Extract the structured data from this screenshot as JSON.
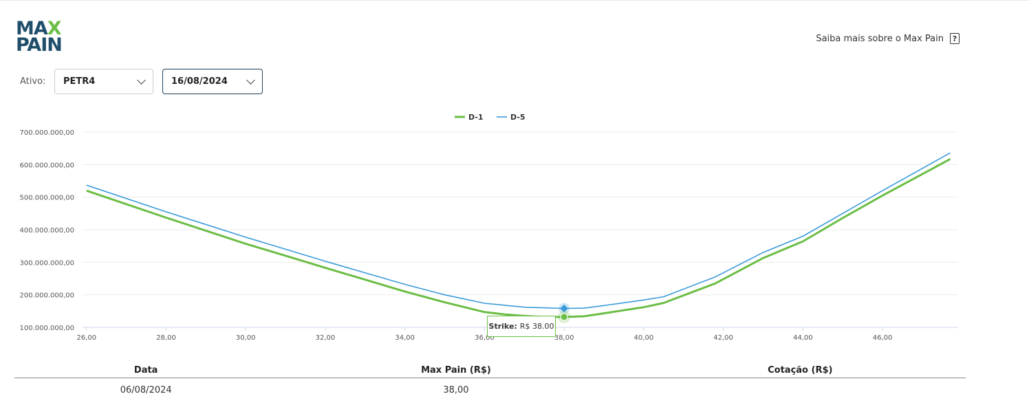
{
  "logo": {
    "line1_a": "MA",
    "line1_b": "X",
    "line2": "PAIN"
  },
  "header": {
    "help_link": "Saiba mais sobre o Max Pain",
    "help_icon": "question-icon"
  },
  "filters": {
    "ativo_label": "Ativo:",
    "ativo_value": "PETR4",
    "date_value": "16/08/2024"
  },
  "tooltip": {
    "label": "Strike:",
    "value": "R$ 38.00"
  },
  "table": {
    "headers": [
      "Data",
      "Max Pain (R$)",
      "Cotação (R$)"
    ],
    "rows": [
      [
        "06/08/2024",
        "38,00",
        ""
      ]
    ]
  },
  "chart_data": {
    "type": "line",
    "xlim": [
      25.9,
      47.9
    ],
    "ylim": [
      100000000,
      700000000
    ],
    "x_ticks": [
      "26,00",
      "28,00",
      "30,00",
      "32,00",
      "34,00",
      "36,00",
      "38,00",
      "40,00",
      "42,00",
      "44,00",
      "46,00"
    ],
    "x_tick_values": [
      26,
      28,
      30,
      32,
      34,
      36,
      38,
      40,
      42,
      44,
      46
    ],
    "y_ticks": [
      "100.000.000,00",
      "200.000.000,00",
      "300.000.000,00",
      "400.000.000,00",
      "500.000.000,00",
      "600.000.000,00",
      "700.000.000,00"
    ],
    "y_tick_values": [
      100000000,
      200000000,
      300000000,
      400000000,
      500000000,
      600000000,
      700000000
    ],
    "legend_position": "top-center",
    "grid": true,
    "series": [
      {
        "name": "D-1",
        "color": "#6bbd45",
        "x": [
          26,
          28,
          30,
          32,
          34,
          35,
          36,
          36.5,
          37,
          37.5,
          38,
          38.5,
          39,
          40,
          40.5,
          41.8,
          43,
          44,
          45,
          46,
          47.7
        ],
        "y": [
          520000000,
          437000000,
          357000000,
          283000000,
          210000000,
          177000000,
          147000000,
          140000000,
          135000000,
          132000000,
          132000000,
          134000000,
          143000000,
          162000000,
          175000000,
          235000000,
          313000000,
          364000000,
          436000000,
          505000000,
          617000000
        ]
      },
      {
        "name": "D-5",
        "color": "#3a9ad9",
        "x": [
          26,
          28,
          30,
          32,
          34,
          35,
          36,
          36.5,
          37,
          37.5,
          38,
          38.5,
          39,
          40,
          40.5,
          41.8,
          43,
          44,
          45,
          46,
          47.7
        ],
        "y": [
          537000000,
          455000000,
          377000000,
          303000000,
          232000000,
          200000000,
          174000000,
          168000000,
          162000000,
          160000000,
          158000000,
          159000000,
          167000000,
          184000000,
          194000000,
          255000000,
          330000000,
          380000000,
          450000000,
          520000000,
          636000000
        ]
      }
    ],
    "highlight": {
      "x": 38,
      "d1": 132000000,
      "d5": 158000000
    }
  }
}
